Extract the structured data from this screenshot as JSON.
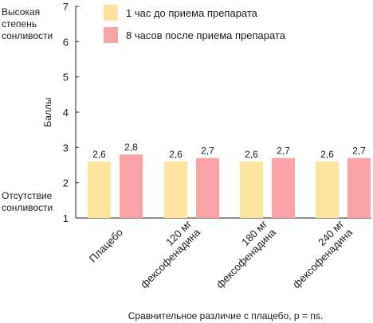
{
  "chart_data": {
    "type": "bar",
    "categories": [
      [
        "Плацебо"
      ],
      [
        "120 мг",
        "фексофенадина"
      ],
      [
        "180 мг",
        "фексофенадина"
      ],
      [
        "240 мг",
        "фексофенадина"
      ]
    ],
    "series": [
      {
        "name": "1 час до приема препарата",
        "values": [
          2.6,
          2.6,
          2.6,
          2.6
        ],
        "labels": [
          "2,6",
          "2,6",
          "2,6",
          "2,6"
        ],
        "color": "#fde49e"
      },
      {
        "name": "8 часов после приема препарата",
        "values": [
          2.8,
          2.7,
          2.7,
          2.7
        ],
        "labels": [
          "2,8",
          "2,7",
          "2,7",
          "2,7"
        ],
        "color": "#f9a3a6"
      }
    ],
    "ylabel": "Баллы",
    "ylim": [
      1,
      7
    ],
    "yticks": [
      1,
      2,
      3,
      4,
      5,
      6,
      7
    ],
    "y_annotation_top": [
      "Высокая",
      "степень",
      "сонливости"
    ],
    "y_annotation_bottom": [
      "Отсутствие",
      "сонливости"
    ],
    "footnote": "Сравнительное различие с плацебо, p = ns.",
    "legend_position": "top",
    "grid": false
  }
}
